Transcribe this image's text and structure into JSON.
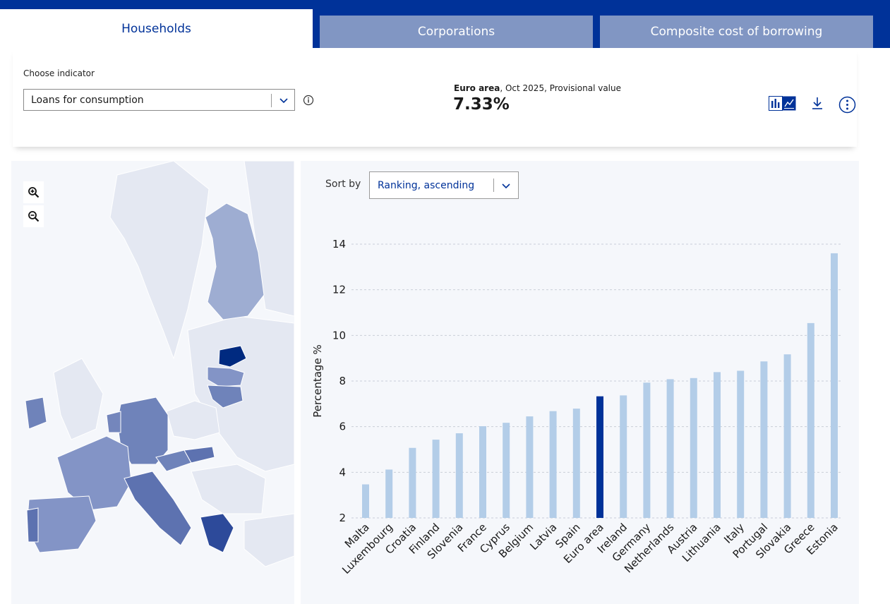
{
  "tabs": [
    {
      "label": "Households",
      "active": true
    },
    {
      "label": "Corporations",
      "active": false
    },
    {
      "label": "Composite cost of borrowing",
      "active": false
    }
  ],
  "indicator": {
    "label": "Choose indicator",
    "selected": "Loans for consumption"
  },
  "summary": {
    "area": "Euro area",
    "detail": ", Oct 2025, Provisional value",
    "value": "7.33%"
  },
  "icons": {
    "info": "info-icon",
    "chart_toggle": "bar-line-chart-toggle-icon",
    "download": "download-icon",
    "more": "more-options-icon",
    "zoom_in": "zoom-in-icon",
    "zoom_out": "zoom-out-icon"
  },
  "sort": {
    "label": "Sort by",
    "selected": "Ranking, ascending"
  },
  "colors": {
    "navy": "#003299",
    "tab_inactive": "#8196c3",
    "bar": "#b3cde8",
    "bar_highlight": "#003299",
    "panel_bg": "#f5f7fb"
  },
  "chart_data": {
    "type": "bar",
    "ylabel": "Percentage %",
    "ylim": [
      2,
      14
    ],
    "yticks": [
      2,
      4,
      6,
      8,
      10,
      12,
      14
    ],
    "grid": true,
    "highlight": "Euro area",
    "categories": [
      "Malta",
      "Luxembourg",
      "Croatia",
      "Finland",
      "Slovenia",
      "France",
      "Cyprus",
      "Belgium",
      "Latvia",
      "Spain",
      "Euro area",
      "Ireland",
      "Germany",
      "Netherlands",
      "Austria",
      "Lithuania",
      "Italy",
      "Portugal",
      "Slovakia",
      "Greece",
      "Estonia"
    ],
    "values": [
      3.47,
      4.12,
      5.07,
      5.43,
      5.71,
      6.02,
      6.17,
      6.45,
      6.68,
      6.79,
      7.33,
      7.37,
      7.93,
      8.08,
      8.13,
      8.39,
      8.45,
      8.86,
      9.17,
      10.54,
      13.6
    ]
  }
}
